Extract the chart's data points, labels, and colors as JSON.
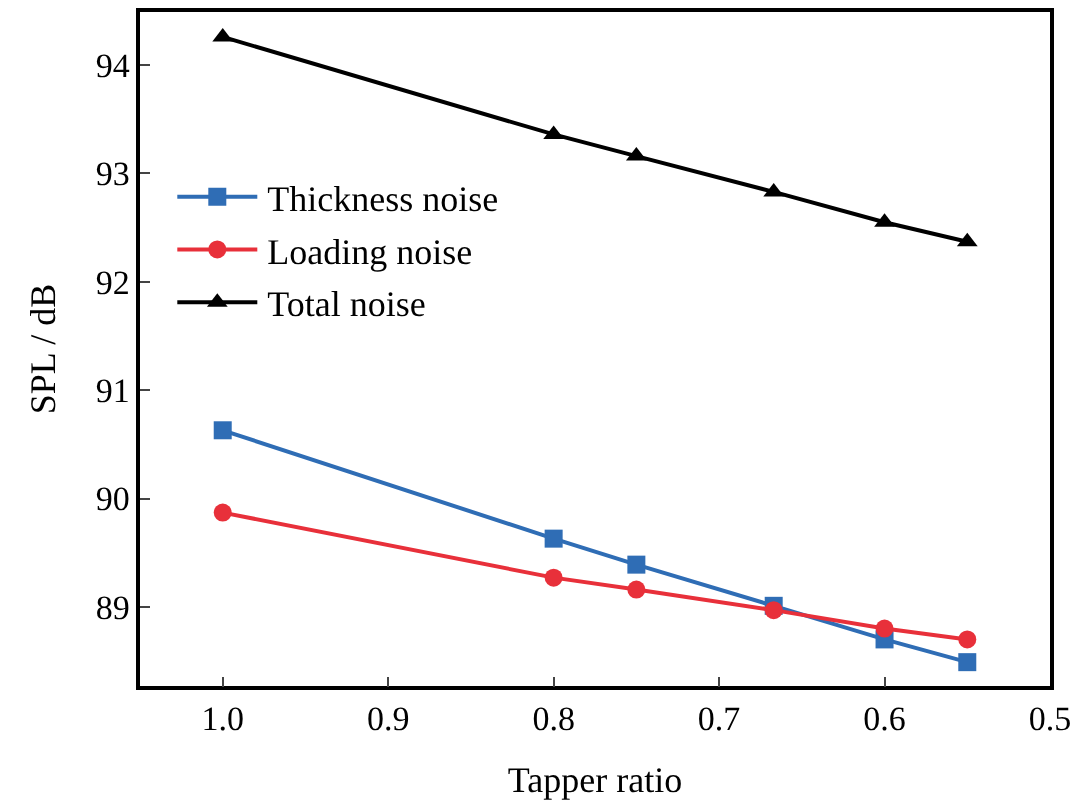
{
  "chart_data": {
    "type": "line",
    "xlabel": "Tapper ratio",
    "ylabel": "SPL / dB",
    "x": [
      1.0,
      0.8,
      0.75,
      0.667,
      0.6,
      0.55
    ],
    "series": [
      {
        "name": "Thickness noise",
        "color": "#2f6db5",
        "marker": "square",
        "values": [
          90.63,
          89.63,
          89.39,
          89.01,
          88.7,
          88.49
        ]
      },
      {
        "name": "Loading noise",
        "color": "#e8303a",
        "marker": "circle",
        "values": [
          89.87,
          89.27,
          89.16,
          88.97,
          88.8,
          88.7
        ]
      },
      {
        "name": "Total noise",
        "color": "#000000",
        "marker": "triangle",
        "values": [
          94.26,
          93.36,
          93.16,
          92.83,
          92.55,
          92.37
        ]
      }
    ],
    "xlim": [
      1.05,
      0.5
    ],
    "xticks": [
      {
        "value": 1.0,
        "label": "1.0"
      },
      0.9,
      0.8,
      0.7,
      0.6,
      0.5
    ],
    "ylim": [
      88.27,
      94.49
    ],
    "yticks": [
      89,
      90,
      91,
      92,
      93,
      94
    ],
    "legend": "top left",
    "line_style": "solid"
  }
}
